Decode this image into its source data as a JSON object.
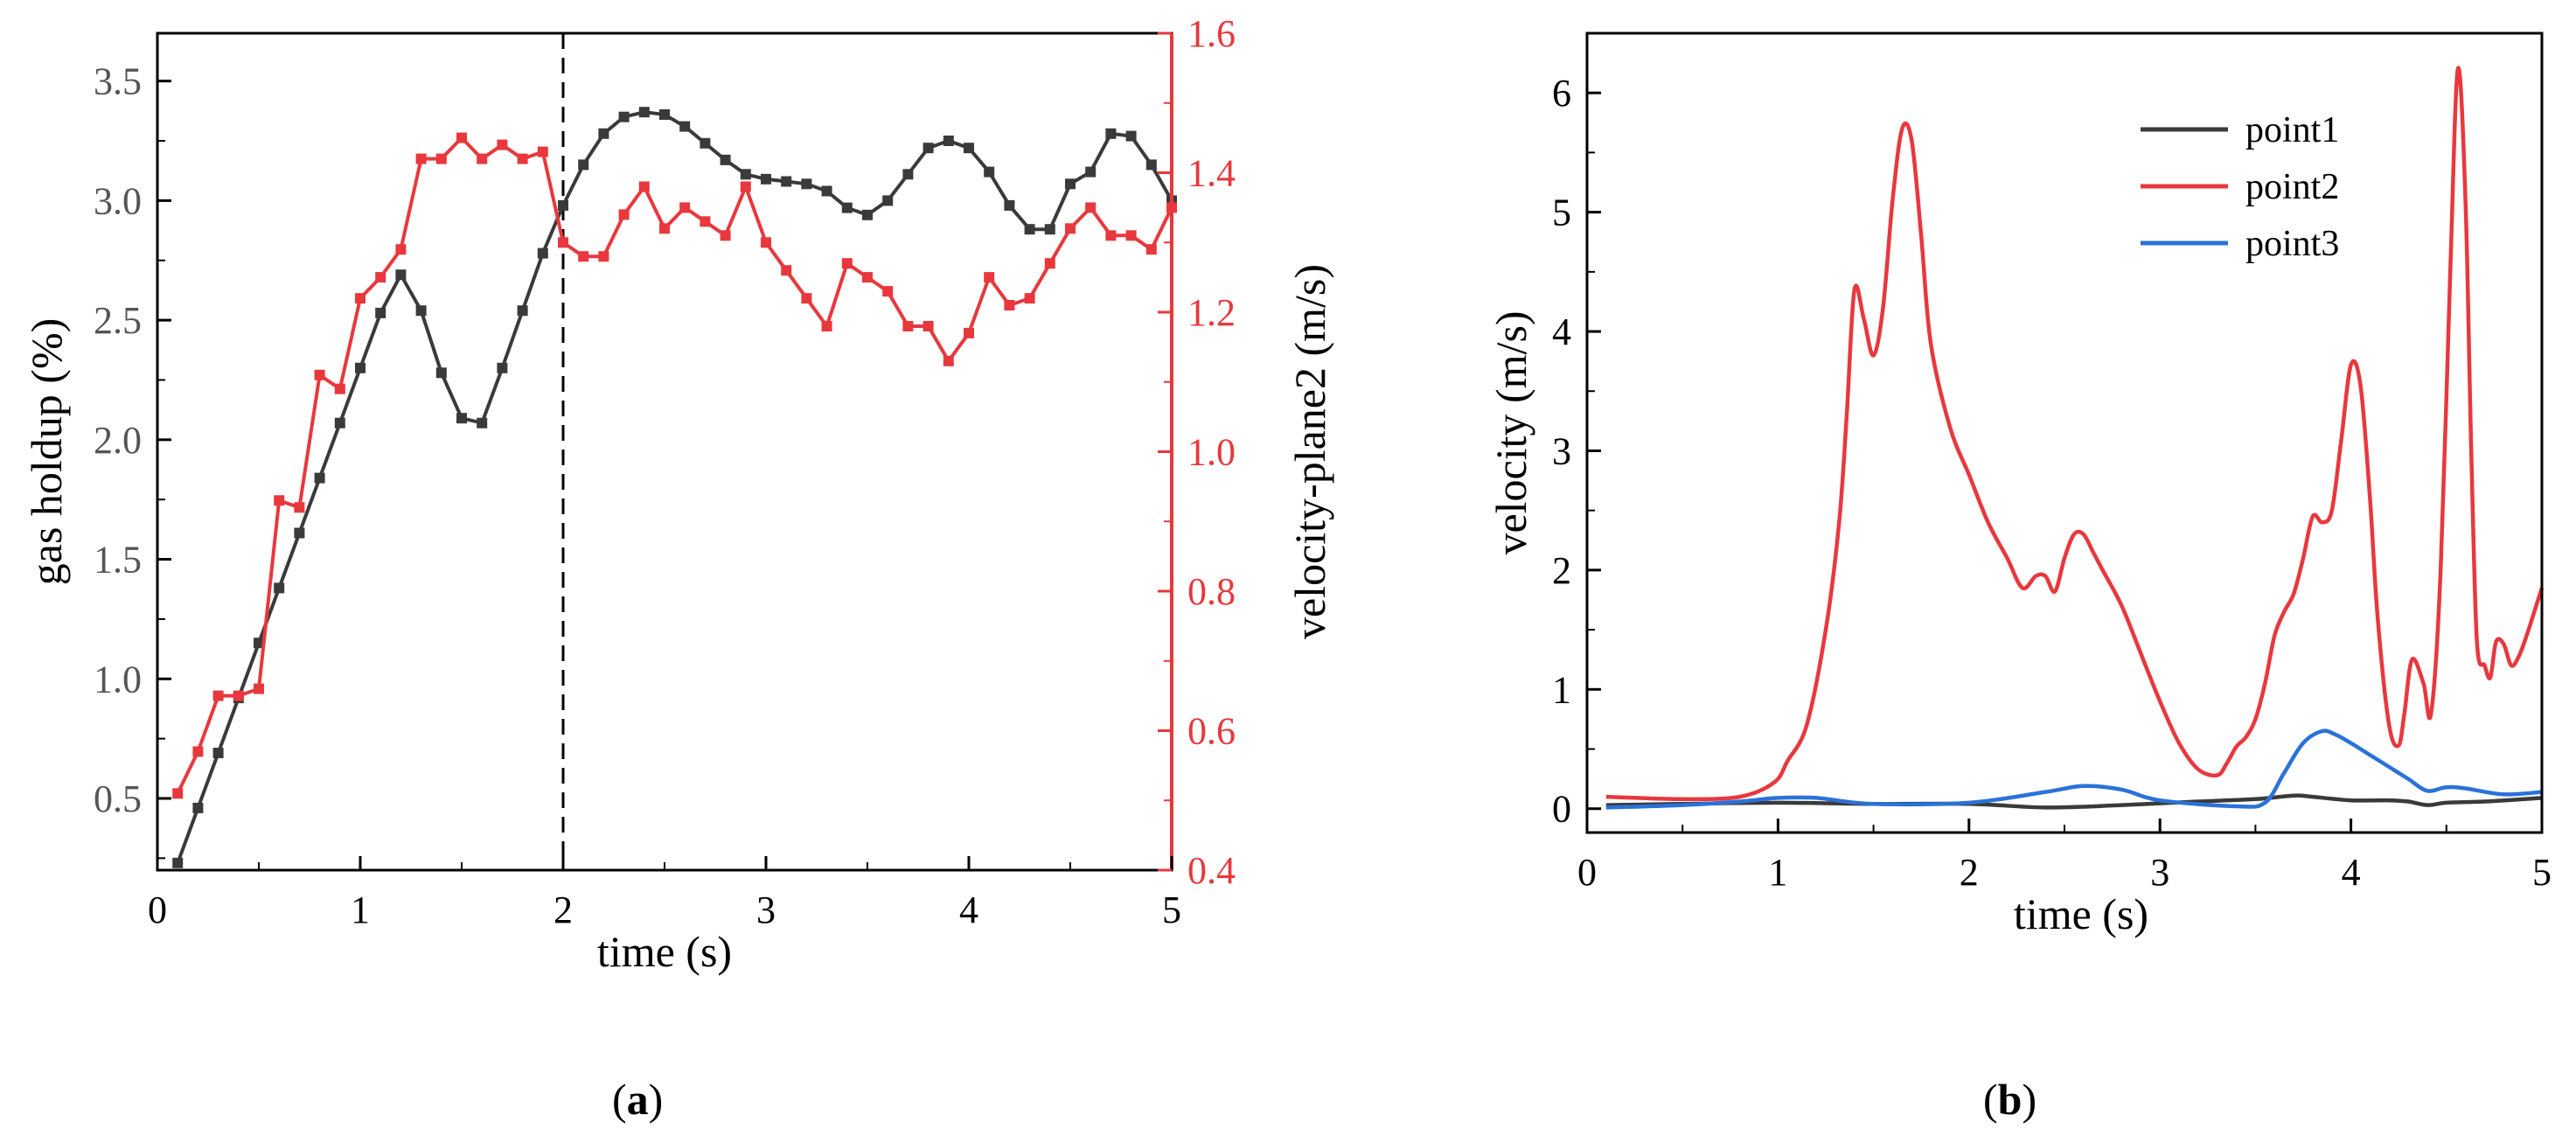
{
  "colors": {
    "black": "#3a3a3a",
    "red": "#e8383d",
    "blue": "#2a72d8",
    "dashed": "#000000"
  },
  "panels": {
    "a_label": "a",
    "b_label": "b"
  },
  "chart_data": [
    {
      "id": "a",
      "type": "line",
      "xlabel": "time (s)",
      "ylabel_left": "gas holdup (%)",
      "ylabel_right": "velocity-plane2 (m/s)",
      "xlim": [
        0,
        5
      ],
      "ylim_left": [
        0.2,
        3.7
      ],
      "ylim_right": [
        0.4,
        1.6
      ],
      "xticks": [
        "0",
        "1",
        "2",
        "3",
        "4",
        "5"
      ],
      "yticks_left": [
        "0.5",
        "1.0",
        "1.5",
        "2.0",
        "2.5",
        "3.0",
        "3.5"
      ],
      "yticks_right": [
        "0.4",
        "0.6",
        "0.8",
        "1.0",
        "1.2",
        "1.4",
        "1.6"
      ],
      "vline_x": 2,
      "series": [
        {
          "name": "gas holdup",
          "axis": "left",
          "marker": "square",
          "x": [
            0.1,
            0.2,
            0.3,
            0.4,
            0.5,
            0.6,
            0.7,
            0.8,
            0.9,
            1.0,
            1.1,
            1.2,
            1.3,
            1.4,
            1.5,
            1.6,
            1.7,
            1.8,
            1.9,
            2.0,
            2.1,
            2.2,
            2.3,
            2.4,
            2.5,
            2.6,
            2.7,
            2.8,
            2.9,
            3.0,
            3.1,
            3.2,
            3.3,
            3.4,
            3.5,
            3.6,
            3.7,
            3.8,
            3.9,
            4.0,
            4.1,
            4.2,
            4.3,
            4.4,
            4.5,
            4.6,
            4.7,
            4.8,
            4.9,
            5.0
          ],
          "y": [
            0.23,
            0.46,
            0.69,
            0.92,
            1.15,
            1.38,
            1.61,
            1.84,
            2.07,
            2.3,
            2.53,
            2.69,
            2.54,
            2.28,
            2.09,
            2.07,
            2.3,
            2.54,
            2.78,
            2.98,
            3.15,
            3.28,
            3.35,
            3.37,
            3.36,
            3.31,
            3.24,
            3.17,
            3.11,
            3.09,
            3.08,
            3.07,
            3.04,
            2.97,
            2.94,
            3.0,
            3.11,
            3.22,
            3.25,
            3.22,
            3.12,
            2.98,
            2.88,
            2.88,
            3.07,
            3.12,
            3.28,
            3.27,
            3.15,
            3.0
          ]
        },
        {
          "name": "velocity-plane2",
          "axis": "right",
          "marker": "square",
          "x": [
            0.1,
            0.2,
            0.3,
            0.4,
            0.5,
            0.6,
            0.7,
            0.8,
            0.9,
            1.0,
            1.1,
            1.2,
            1.3,
            1.4,
            1.5,
            1.6,
            1.7,
            1.8,
            1.9,
            2.0,
            2.1,
            2.2,
            2.3,
            2.4,
            2.5,
            2.6,
            2.7,
            2.8,
            2.9,
            3.0,
            3.1,
            3.2,
            3.3,
            3.4,
            3.5,
            3.6,
            3.7,
            3.8,
            3.9,
            4.0,
            4.1,
            4.2,
            4.3,
            4.4,
            4.5,
            4.6,
            4.7,
            4.8,
            4.9,
            5.0
          ],
          "y": [
            0.51,
            0.57,
            0.65,
            0.65,
            0.66,
            0.93,
            0.92,
            1.11,
            1.09,
            1.22,
            1.25,
            1.29,
            1.42,
            1.42,
            1.45,
            1.42,
            1.44,
            1.42,
            1.43,
            1.3,
            1.28,
            1.28,
            1.34,
            1.38,
            1.32,
            1.35,
            1.33,
            1.31,
            1.38,
            1.3,
            1.26,
            1.22,
            1.18,
            1.27,
            1.25,
            1.23,
            1.18,
            1.18,
            1.13,
            1.17,
            1.25,
            1.21,
            1.22,
            1.27,
            1.32,
            1.35,
            1.31,
            1.31,
            1.29,
            1.35
          ]
        }
      ]
    },
    {
      "id": "b",
      "type": "line",
      "xlabel": "time (s)",
      "ylabel": "velocity (m/s)",
      "xlim": [
        0,
        5
      ],
      "ylim": [
        -0.2,
        6.5
      ],
      "xticks": [
        "0",
        "1",
        "2",
        "3",
        "4",
        "5"
      ],
      "yticks": [
        "0",
        "1",
        "2",
        "3",
        "4",
        "5",
        "6"
      ],
      "legend_position": "top-right",
      "series": [
        {
          "name": "point1",
          "x": [
            0.1,
            0.5,
            1.0,
            1.5,
            2.0,
            2.4,
            2.8,
            3.2,
            3.5,
            3.7,
            3.8,
            4.0,
            4.2,
            4.3,
            4.4,
            4.5,
            4.7,
            5.0
          ],
          "y": [
            0.03,
            0.04,
            0.05,
            0.04,
            0.04,
            0.01,
            0.03,
            0.06,
            0.08,
            0.11,
            0.1,
            0.07,
            0.07,
            0.06,
            0.03,
            0.05,
            0.06,
            0.09
          ]
        },
        {
          "name": "point2",
          "x": [
            0.1,
            0.5,
            0.8,
            0.98,
            1.05,
            1.15,
            1.25,
            1.32,
            1.36,
            1.4,
            1.45,
            1.5,
            1.55,
            1.6,
            1.65,
            1.7,
            1.75,
            1.8,
            1.9,
            2.0,
            2.1,
            2.2,
            2.28,
            2.35,
            2.4,
            2.45,
            2.5,
            2.55,
            2.6,
            2.65,
            2.7,
            2.8,
            2.9,
            3.0,
            3.1,
            3.2,
            3.3,
            3.35,
            3.4,
            3.45,
            3.5,
            3.55,
            3.6,
            3.65,
            3.7,
            3.75,
            3.8,
            3.85,
            3.9,
            3.95,
            4.0,
            4.05,
            4.1,
            4.14,
            4.2,
            4.25,
            4.28,
            4.32,
            4.38,
            4.42,
            4.47,
            4.52,
            4.56,
            4.6,
            4.63,
            4.66,
            4.7,
            4.73,
            4.76,
            4.8,
            4.84,
            4.88,
            4.92,
            4.96,
            5.0
          ],
          "y": [
            0.1,
            0.08,
            0.1,
            0.22,
            0.4,
            0.7,
            1.5,
            2.4,
            3.3,
            4.35,
            4.1,
            3.8,
            4.2,
            5.1,
            5.7,
            5.6,
            4.8,
            3.9,
            3.2,
            2.8,
            2.4,
            2.1,
            1.85,
            1.95,
            1.95,
            1.82,
            2.1,
            2.3,
            2.3,
            2.15,
            2.0,
            1.7,
            1.3,
            0.9,
            0.55,
            0.33,
            0.28,
            0.38,
            0.52,
            0.6,
            0.75,
            1.05,
            1.45,
            1.65,
            1.8,
            2.1,
            2.45,
            2.4,
            2.5,
            3.1,
            3.72,
            3.55,
            2.6,
            1.6,
            0.7,
            0.53,
            0.8,
            1.25,
            1.05,
            0.8,
            2.0,
            4.5,
            6.2,
            5.1,
            3.0,
            1.4,
            1.2,
            1.1,
            1.4,
            1.38,
            1.2,
            1.28,
            1.45,
            1.65,
            1.85
          ]
        },
        {
          "name": "point3",
          "x": [
            0.1,
            0.5,
            0.8,
            1.0,
            1.2,
            1.5,
            2.0,
            2.4,
            2.6,
            2.8,
            3.0,
            3.4,
            3.55,
            3.65,
            3.75,
            3.85,
            3.92,
            4.0,
            4.1,
            4.2,
            4.3,
            4.4,
            4.5,
            4.6,
            4.8,
            5.0
          ],
          "y": [
            0.01,
            0.03,
            0.06,
            0.09,
            0.09,
            0.04,
            0.05,
            0.14,
            0.19,
            0.16,
            0.07,
            0.02,
            0.05,
            0.3,
            0.55,
            0.65,
            0.62,
            0.55,
            0.45,
            0.35,
            0.25,
            0.15,
            0.18,
            0.17,
            0.12,
            0.14
          ]
        }
      ]
    }
  ]
}
